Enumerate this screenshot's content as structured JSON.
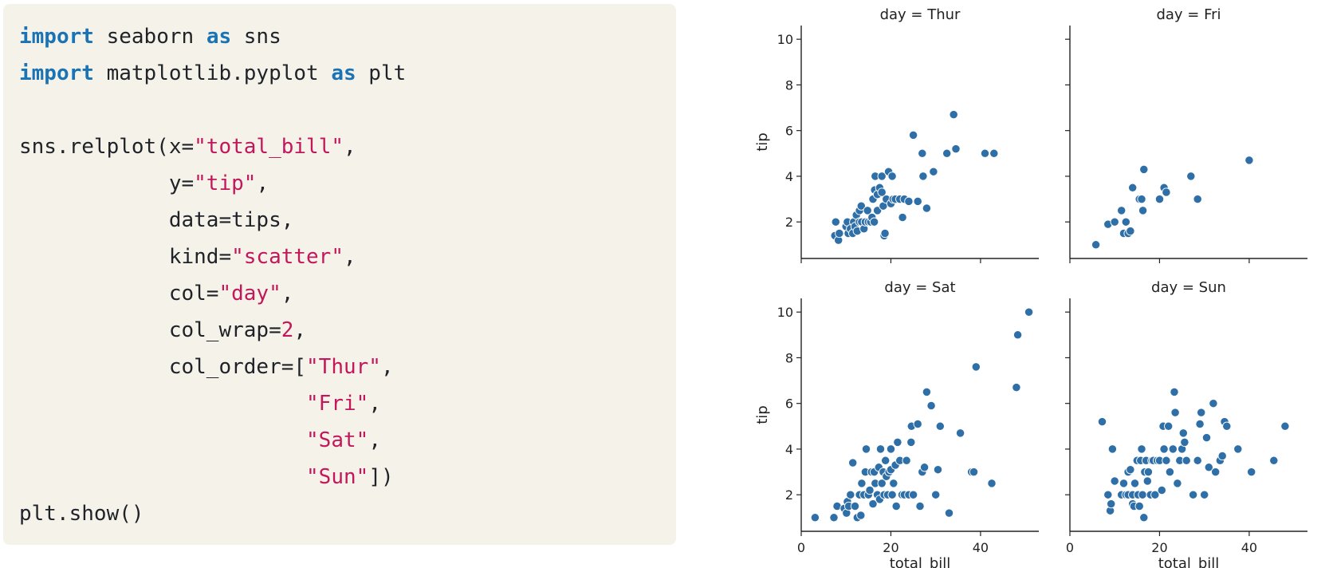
{
  "code_lines": [
    [
      {
        "t": "import",
        "c": "kw"
      },
      {
        "t": " seaborn "
      },
      {
        "t": "as",
        "c": "kw"
      },
      {
        "t": " sns"
      }
    ],
    [
      {
        "t": "import",
        "c": "kw"
      },
      {
        "t": " matplotlib.pyplot "
      },
      {
        "t": "as",
        "c": "kw"
      },
      {
        "t": " plt"
      }
    ],
    [],
    [
      {
        "t": "sns.relplot(x="
      },
      {
        "t": "\"total_bill\"",
        "c": "str"
      },
      {
        "t": ","
      }
    ],
    [
      {
        "t": "            y="
      },
      {
        "t": "\"tip\"",
        "c": "str"
      },
      {
        "t": ","
      }
    ],
    [
      {
        "t": "            data=tips,"
      }
    ],
    [
      {
        "t": "            kind="
      },
      {
        "t": "\"scatter\"",
        "c": "str"
      },
      {
        "t": ","
      }
    ],
    [
      {
        "t": "            col="
      },
      {
        "t": "\"day\"",
        "c": "str"
      },
      {
        "t": ","
      }
    ],
    [
      {
        "t": "            col_wrap="
      },
      {
        "t": "2",
        "c": "num"
      },
      {
        "t": ","
      }
    ],
    [
      {
        "t": "            col_order=["
      },
      {
        "t": "\"Thur\"",
        "c": "str"
      },
      {
        "t": ","
      }
    ],
    [
      {
        "t": "                       "
      },
      {
        "t": "\"Fri\"",
        "c": "str"
      },
      {
        "t": ","
      }
    ],
    [
      {
        "t": "                       "
      },
      {
        "t": "\"Sat\"",
        "c": "str"
      },
      {
        "t": ","
      }
    ],
    [
      {
        "t": "                       "
      },
      {
        "t": "\"Sun\"",
        "c": "str"
      },
      {
        "t": "])"
      }
    ],
    [
      {
        "t": "plt.show()"
      }
    ]
  ],
  "colors": {
    "point": "#2f6fa8",
    "point_edge": "#ffffff",
    "axis": "#222222"
  },
  "chart_data": [
    {
      "type": "scatter",
      "title": "day = Thur",
      "xlabel": "",
      "ylabel": "tip",
      "xlim": [
        0,
        53
      ],
      "ylim": [
        0.4,
        10.6
      ],
      "xticks": [],
      "yticks": [
        2,
        4,
        6,
        8,
        10
      ],
      "points": [
        [
          7.5,
          1.4
        ],
        [
          7.7,
          2.0
        ],
        [
          8.3,
          1.2
        ],
        [
          8.5,
          1.5
        ],
        [
          10.0,
          1.8
        ],
        [
          10.3,
          2.0
        ],
        [
          10.5,
          1.5
        ],
        [
          11.0,
          1.7
        ],
        [
          11.5,
          1.5
        ],
        [
          11.7,
          2.0
        ],
        [
          12.0,
          1.8
        ],
        [
          12.3,
          2.3
        ],
        [
          12.5,
          1.6
        ],
        [
          13.0,
          2.0
        ],
        [
          13.0,
          2.5
        ],
        [
          13.4,
          2.7
        ],
        [
          13.5,
          2.0
        ],
        [
          14.0,
          1.7
        ],
        [
          14.3,
          2.0
        ],
        [
          14.8,
          2.5
        ],
        [
          15.0,
          2.0
        ],
        [
          15.5,
          2.0
        ],
        [
          15.8,
          2.2
        ],
        [
          16.0,
          3.0
        ],
        [
          16.3,
          2.0
        ],
        [
          16.4,
          3.4
        ],
        [
          16.5,
          4.0
        ],
        [
          17.0,
          2.5
        ],
        [
          17.0,
          3.2
        ],
        [
          17.5,
          3.5
        ],
        [
          18.0,
          3.3
        ],
        [
          18.0,
          4.0
        ],
        [
          18.3,
          2.7
        ],
        [
          18.5,
          1.4
        ],
        [
          18.7,
          1.5
        ],
        [
          19.0,
          3.0
        ],
        [
          19.5,
          4.2
        ],
        [
          20.0,
          2.8
        ],
        [
          20.3,
          4.0
        ],
        [
          20.5,
          3.0
        ],
        [
          21.0,
          3.0
        ],
        [
          22.0,
          3.0
        ],
        [
          22.6,
          2.2
        ],
        [
          23.0,
          3.0
        ],
        [
          24.0,
          2.9
        ],
        [
          25.0,
          5.8
        ],
        [
          26.0,
          2.9
        ],
        [
          27.0,
          5.0
        ],
        [
          27.2,
          4.0
        ],
        [
          28.0,
          2.6
        ],
        [
          29.5,
          4.2
        ],
        [
          32.5,
          5.0
        ],
        [
          34.0,
          6.7
        ],
        [
          34.5,
          5.2
        ],
        [
          41.0,
          5.0
        ],
        [
          43.0,
          5.0
        ]
      ]
    },
    {
      "type": "scatter",
      "title": "day = Fri",
      "xlabel": "",
      "ylabel": "",
      "xlim": [
        0,
        53
      ],
      "ylim": [
        0.4,
        10.6
      ],
      "xticks": [],
      "yticks": [],
      "points": [
        [
          5.8,
          1.0
        ],
        [
          8.5,
          1.9
        ],
        [
          10.0,
          2.0
        ],
        [
          11.5,
          2.5
        ],
        [
          12.0,
          1.5
        ],
        [
          12.5,
          2.0
        ],
        [
          13.0,
          1.5
        ],
        [
          13.5,
          1.6
        ],
        [
          14.0,
          3.5
        ],
        [
          15.5,
          3.0
        ],
        [
          16.0,
          3.0
        ],
        [
          16.3,
          2.5
        ],
        [
          16.5,
          4.3
        ],
        [
          20.0,
          3.0
        ],
        [
          21.0,
          3.5
        ],
        [
          21.5,
          3.3
        ],
        [
          27.0,
          4.0
        ],
        [
          28.5,
          3.0
        ],
        [
          40.0,
          4.7
        ]
      ]
    },
    {
      "type": "scatter",
      "title": "day = Sat",
      "xlabel": "total_bill",
      "ylabel": "tip",
      "xlim": [
        0,
        53
      ],
      "ylim": [
        0.4,
        10.6
      ],
      "xticks": [
        0,
        20,
        40
      ],
      "yticks": [
        2,
        4,
        6,
        8,
        10
      ],
      "points": [
        [
          3.1,
          1.0
        ],
        [
          7.3,
          1.0
        ],
        [
          8.0,
          1.5
        ],
        [
          9.6,
          1.4
        ],
        [
          10.1,
          1.2
        ],
        [
          10.3,
          1.7
        ],
        [
          10.6,
          1.5
        ],
        [
          11.0,
          2.0
        ],
        [
          11.5,
          3.4
        ],
        [
          12.0,
          1.5
        ],
        [
          12.5,
          1.0
        ],
        [
          13.0,
          2.0
        ],
        [
          13.3,
          1.1
        ],
        [
          13.5,
          2.5
        ],
        [
          14.0,
          2.0
        ],
        [
          14.3,
          3.0
        ],
        [
          14.5,
          4.0
        ],
        [
          15.0,
          2.0
        ],
        [
          15.3,
          2.2
        ],
        [
          15.7,
          3.0
        ],
        [
          16.0,
          1.6
        ],
        [
          16.3,
          3.0
        ],
        [
          16.5,
          2.5
        ],
        [
          17.0,
          2.0
        ],
        [
          17.3,
          3.2
        ],
        [
          17.5,
          1.8
        ],
        [
          17.7,
          4.0
        ],
        [
          18.0,
          2.5
        ],
        [
          18.3,
          3.0
        ],
        [
          18.5,
          2.0
        ],
        [
          18.8,
          3.5
        ],
        [
          19.0,
          2.8
        ],
        [
          19.3,
          2.0
        ],
        [
          19.6,
          3.0
        ],
        [
          20.0,
          3.1
        ],
        [
          20.0,
          4.0
        ],
        [
          20.3,
          2.0
        ],
        [
          20.6,
          2.5
        ],
        [
          21.0,
          3.3
        ],
        [
          21.2,
          1.5
        ],
        [
          21.5,
          4.3
        ],
        [
          22.0,
          3.5
        ],
        [
          22.5,
          2.0
        ],
        [
          23.0,
          2.0
        ],
        [
          23.5,
          3.5
        ],
        [
          24.0,
          2.0
        ],
        [
          24.5,
          4.3
        ],
        [
          24.6,
          5.0
        ],
        [
          25.0,
          2.0
        ],
        [
          26.0,
          5.1
        ],
        [
          26.5,
          1.5
        ],
        [
          27.0,
          3.0
        ],
        [
          27.5,
          3.2
        ],
        [
          28.0,
          6.5
        ],
        [
          29.0,
          5.9
        ],
        [
          30.0,
          2.0
        ],
        [
          30.5,
          3.1
        ],
        [
          31.0,
          5.0
        ],
        [
          33.0,
          1.2
        ],
        [
          35.5,
          4.7
        ],
        [
          38.0,
          3.0
        ],
        [
          38.5,
          3.0
        ],
        [
          39.0,
          7.6
        ],
        [
          42.5,
          2.5
        ],
        [
          48.0,
          6.7
        ],
        [
          48.3,
          9.0
        ],
        [
          50.8,
          10.0
        ]
      ]
    },
    {
      "type": "scatter",
      "title": "day = Sun",
      "xlabel": "total_bill",
      "ylabel": "",
      "xlim": [
        0,
        53
      ],
      "ylim": [
        0.4,
        10.6
      ],
      "xticks": [
        0,
        20,
        40
      ],
      "yticks": [],
      "points": [
        [
          7.2,
          5.2
        ],
        [
          8.5,
          2.0
        ],
        [
          9.0,
          1.3
        ],
        [
          9.2,
          1.6
        ],
        [
          9.5,
          4.0
        ],
        [
          10.0,
          2.6
        ],
        [
          11.5,
          2.0
        ],
        [
          12.0,
          2.5
        ],
        [
          12.5,
          2.0
        ],
        [
          13.0,
          2.0
        ],
        [
          13.0,
          3.0
        ],
        [
          13.5,
          3.1
        ],
        [
          14.0,
          2.0
        ],
        [
          14.0,
          1.6
        ],
        [
          14.3,
          1.5
        ],
        [
          14.5,
          2.5
        ],
        [
          15.0,
          3.5
        ],
        [
          15.2,
          2.0
        ],
        [
          15.5,
          1.5
        ],
        [
          15.8,
          3.5
        ],
        [
          16.0,
          4.0
        ],
        [
          16.2,
          2.0
        ],
        [
          16.5,
          1.0
        ],
        [
          16.7,
          3.0
        ],
        [
          17.0,
          3.5
        ],
        [
          17.3,
          2.6
        ],
        [
          17.5,
          3.0
        ],
        [
          18.0,
          2.0
        ],
        [
          18.3,
          3.5
        ],
        [
          18.6,
          3.5
        ],
        [
          19.0,
          2.0
        ],
        [
          19.5,
          3.5
        ],
        [
          20.0,
          3.5
        ],
        [
          20.5,
          2.2
        ],
        [
          20.8,
          5.0
        ],
        [
          21.0,
          4.0
        ],
        [
          21.5,
          3.5
        ],
        [
          22.0,
          5.0
        ],
        [
          22.3,
          3.0
        ],
        [
          23.0,
          4.0
        ],
        [
          23.3,
          6.5
        ],
        [
          23.5,
          5.6
        ],
        [
          24.0,
          2.5
        ],
        [
          24.5,
          3.5
        ],
        [
          25.0,
          4.0
        ],
        [
          25.3,
          4.7
        ],
        [
          25.6,
          4.3
        ],
        [
          26.0,
          3.5
        ],
        [
          27.5,
          2.0
        ],
        [
          28.5,
          3.5
        ],
        [
          29.0,
          5.1
        ],
        [
          29.3,
          5.6
        ],
        [
          30.0,
          2.0
        ],
        [
          30.5,
          4.5
        ],
        [
          31.0,
          3.2
        ],
        [
          32.0,
          6.0
        ],
        [
          32.5,
          3.0
        ],
        [
          33.5,
          3.5
        ],
        [
          34.0,
          3.7
        ],
        [
          34.5,
          5.2
        ],
        [
          35.0,
          5.0
        ],
        [
          37.5,
          4.0
        ],
        [
          40.5,
          3.0
        ],
        [
          45.5,
          3.5
        ],
        [
          48.0,
          5.0
        ]
      ]
    }
  ]
}
